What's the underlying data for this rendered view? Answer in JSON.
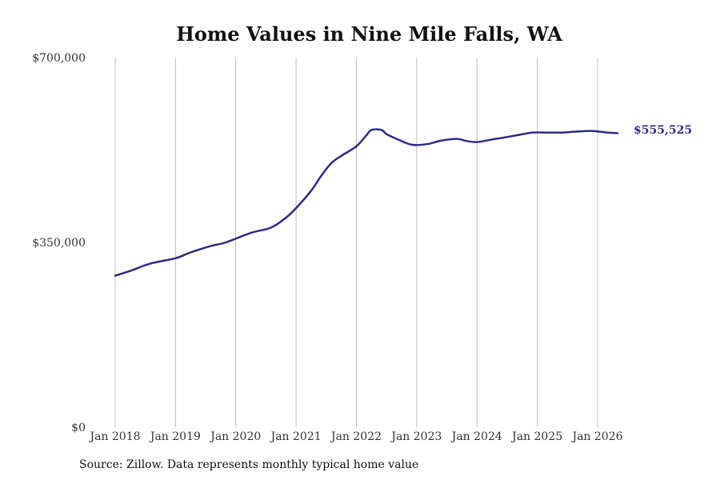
{
  "chart_data": {
    "type": "line",
    "title": "Home Values in Nine Mile Falls, WA",
    "xlabel": "",
    "ylabel": "",
    "ylim": [
      0,
      700000
    ],
    "y_ticks": [
      {
        "value": 0,
        "label": "$0"
      },
      {
        "value": 350000,
        "label": "$350,000"
      },
      {
        "value": 700000,
        "label": "$700,000"
      }
    ],
    "x_ticks": [
      {
        "date": "2018-01",
        "label": "Jan 2018"
      },
      {
        "date": "2019-01",
        "label": "Jan 2019"
      },
      {
        "date": "2020-01",
        "label": "Jan 2020"
      },
      {
        "date": "2021-01",
        "label": "Jan 2021"
      },
      {
        "date": "2022-01",
        "label": "Jan 2022"
      },
      {
        "date": "2023-01",
        "label": "Jan 2023"
      },
      {
        "date": "2024-01",
        "label": "Jan 2024"
      },
      {
        "date": "2025-01",
        "label": "Jan 2025"
      },
      {
        "date": "2026-01",
        "label": "Jan 2026"
      }
    ],
    "grid": "vertical",
    "legend": "none",
    "line_color": "#2e2d86",
    "end_label": "$555,525",
    "series": [
      {
        "x": [
          "2018-01",
          "2018-04",
          "2018-08",
          "2019-01",
          "2019-04",
          "2019-08",
          "2019-11",
          "2020-04",
          "2020-08",
          "2020-11",
          "2021-01",
          "2021-04",
          "2021-06",
          "2021-08",
          "2021-10",
          "2022-01",
          "2022-03",
          "2022-04",
          "2022-06",
          "2022-07",
          "2022-09",
          "2022-12",
          "2023-03",
          "2023-06",
          "2023-09",
          "2023-11",
          "2024-01",
          "2024-04",
          "2024-06",
          "2024-09",
          "2024-12",
          "2025-03",
          "2025-06",
          "2025-09",
          "2025-12",
          "2026-03",
          "2026-05"
        ],
        "y": [
          287000,
          296000,
          310000,
          320000,
          331000,
          343000,
          350000,
          368000,
          378000,
          397000,
          415000,
          448000,
          476000,
          500000,
          514000,
          532000,
          553000,
          563000,
          563000,
          555000,
          546000,
          535000,
          536000,
          543000,
          546000,
          542000,
          540000,
          545000,
          548000,
          553000,
          558000,
          558000,
          558000,
          560000,
          561000,
          558000,
          557000
        ]
      }
    ]
  },
  "source": "Source: Zillow. Data represents monthly typical home value"
}
